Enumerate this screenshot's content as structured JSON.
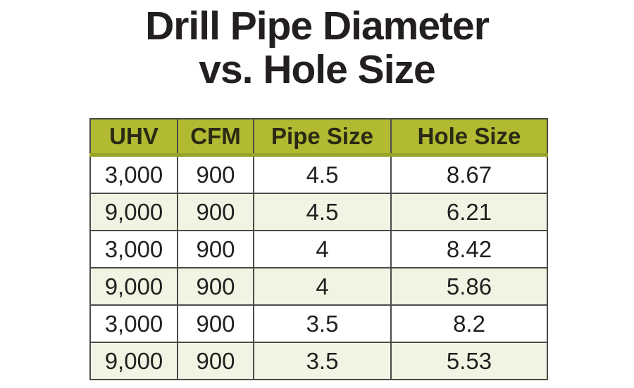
{
  "title": {
    "line1": "Drill Pipe Diameter",
    "line2": "vs. Hole Size"
  },
  "chart_data": {
    "type": "table",
    "title": "Drill Pipe Diameter vs. Hole Size",
    "columns": [
      "UHV",
      "CFM",
      "Pipe Size",
      "Hole Size"
    ],
    "rows": [
      [
        "3,000",
        "900",
        "4.5",
        "8.67"
      ],
      [
        "9,000",
        "900",
        "4.5",
        "6.21"
      ],
      [
        "3,000",
        "900",
        "4",
        "8.42"
      ],
      [
        "9,000",
        "900",
        "4",
        "5.86"
      ],
      [
        "3,000",
        "900",
        "3.5",
        "8.2"
      ],
      [
        "9,000",
        "900",
        "3.5",
        "5.53"
      ]
    ],
    "layout": {
      "header_position": "top",
      "row_striping": "alternate white and cream starting with white",
      "alignment": "center"
    }
  },
  "colors": {
    "background": "#ffffff",
    "title_text": "#231f20",
    "header_bg": "#b1ba31",
    "header_bottom_border": "#98a32a",
    "header_text": "#2a2a15",
    "row_alt_bg": "#f2f4e3",
    "grid_border": "#4a4a48",
    "cell_text": "#231f20"
  }
}
